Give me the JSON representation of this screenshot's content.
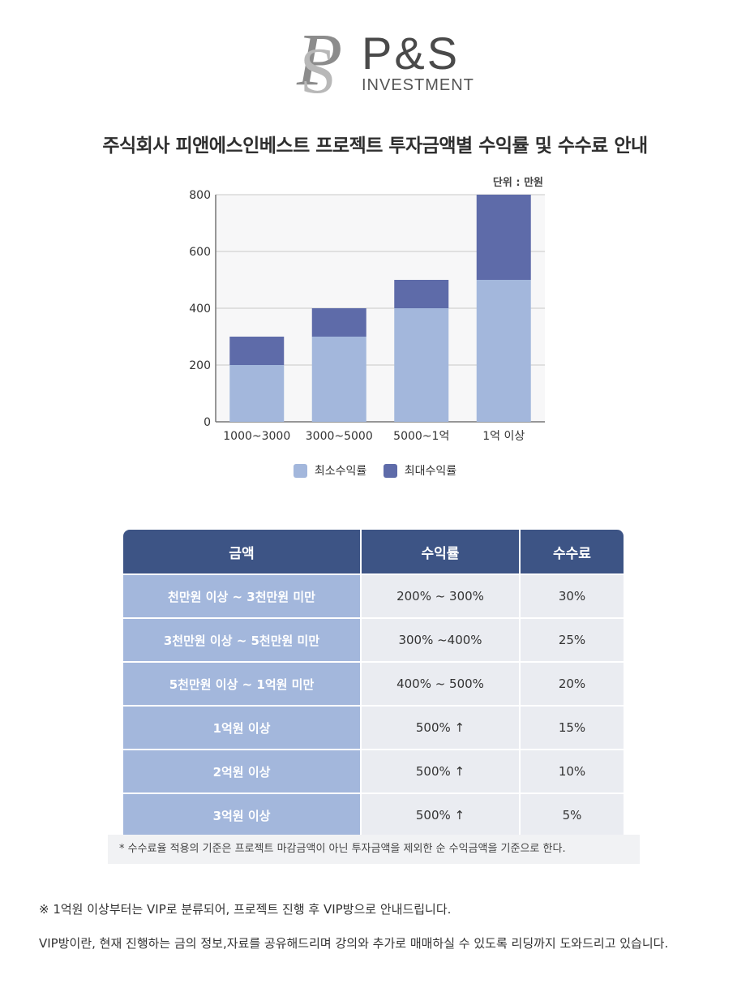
{
  "logo": {
    "name": "P&S",
    "sub": "INVESTMENT",
    "monogram": "PS"
  },
  "page_title": "주식회사 피앤에스인베스트 프로젝트 투자금액별 수익률 및 수수료 안내",
  "unit_label": "단위 : 만원",
  "colors": {
    "min": "#a3b7dc",
    "max": "#5e6ba9",
    "header": "#3d5485",
    "cell": "#eaecf1"
  },
  "chart_data": {
    "type": "bar",
    "stacked": true,
    "categories": [
      "1000~3000",
      "3000~5000",
      "5000~1억",
      "1억 이상"
    ],
    "series": [
      {
        "name": "최소수익률",
        "values": [
          200,
          300,
          400,
          500
        ],
        "color": "#a3b7dc"
      },
      {
        "name": "최대수익률",
        "values": [
          100,
          100,
          100,
          300
        ],
        "color": "#5e6ba9"
      }
    ],
    "totals": [
      300,
      400,
      500,
      800
    ],
    "ylim": [
      0,
      800
    ],
    "yticks": [
      0,
      200,
      400,
      600,
      800
    ],
    "grid": true,
    "legend": "bottom-center",
    "unit": "단위 : 만원"
  },
  "legend": {
    "min_label": "최소수익률",
    "max_label": "최대수익률"
  },
  "table": {
    "headers": [
      "금액",
      "수익률",
      "수수료"
    ],
    "rows": [
      {
        "amount": "천만원 이상 ~ 3천만원 미만",
        "rate": "200% ~ 300%",
        "fee": "30%"
      },
      {
        "amount": "3천만원 이상 ~ 5천만원 미만",
        "rate": "300% ~400%",
        "fee": "25%"
      },
      {
        "amount": "5천만원 이상 ~ 1억원 미만",
        "rate": "400% ~ 500%",
        "fee": "20%"
      },
      {
        "amount": "1억원 이상",
        "rate": "500% ↑",
        "fee": "15%"
      },
      {
        "amount": "2억원 이상",
        "rate": "500% ↑",
        "fee": "10%"
      },
      {
        "amount": "3억원 이상",
        "rate": "500% ↑",
        "fee": "5%"
      }
    ]
  },
  "table_note": "*   수수료율 적용의 기준은 프로젝트 마감금액이 아닌 투자금액을 제외한 순 수익금액을 기준으로 한다.",
  "footer": {
    "line1": "※ 1억원 이상부터는 VIP로 분류되어, 프로젝트 진행 후 VIP방으로 안내드립니다.",
    "line2": "VIP방이란, 현재 진행하는 금의 정보,자료를 공유해드리며 강의와 추가로 매매하실 수 있도록 리딩까지 도와드리고 있습니다."
  }
}
